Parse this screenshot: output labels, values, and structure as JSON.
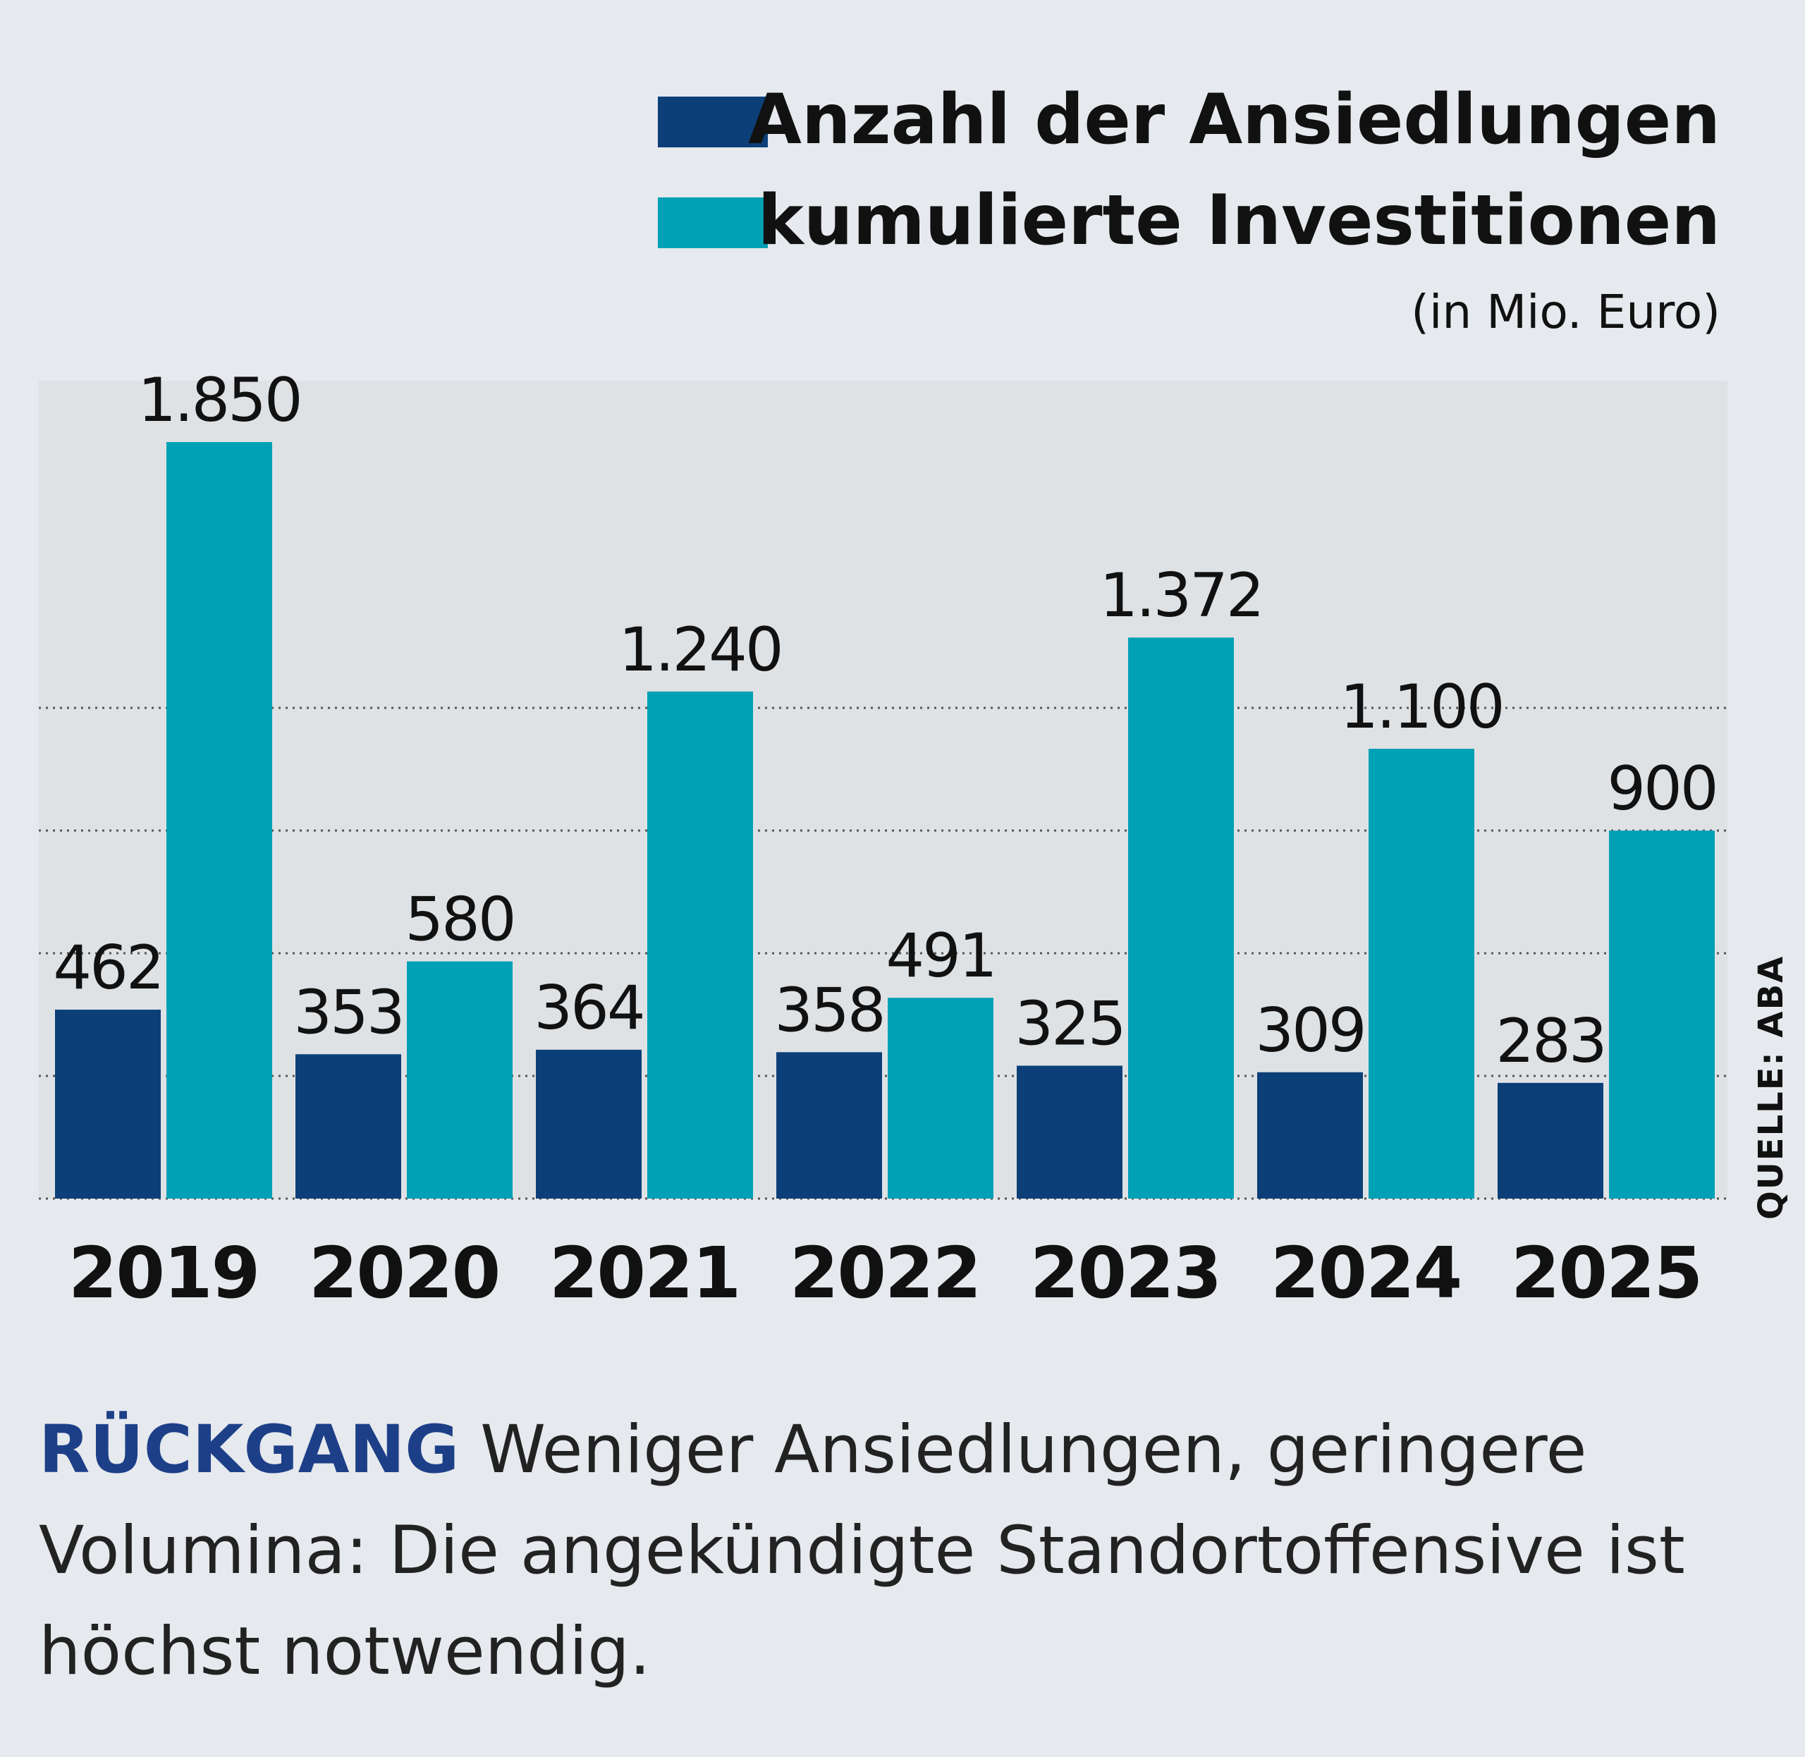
{
  "chart_data": {
    "type": "bar",
    "categories": [
      "2019",
      "2020",
      "2021",
      "2022",
      "2023",
      "2024",
      "2025"
    ],
    "series": [
      {
        "name": "Anzahl der Ansiedlungen",
        "values": [
          462,
          353,
          364,
          358,
          325,
          309,
          283
        ],
        "labels": [
          "462",
          "353",
          "364",
          "358",
          "325",
          "309",
          "283"
        ],
        "color": "#0c3f78"
      },
      {
        "name": "kumulierte Investitionen",
        "values": [
          1850,
          580,
          1240,
          491,
          1372,
          1100,
          900
        ],
        "labels": [
          "1.850",
          "580",
          "1.240",
          "491",
          "1.372",
          "1.100",
          "900"
        ],
        "color": "#00a0b5"
      }
    ],
    "unit_note": "(in Mio. Euro)",
    "legend_position": "top-right",
    "ylim": [
      0,
      2000
    ],
    "grid": true,
    "source": "QUELLE: ABA"
  },
  "caption": {
    "kicker": "RÜCKGANG",
    "text": "Weniger Ansiedlungen, geringere Volumina: Die angekündigte Standortoffensive ist höchst notwendig."
  }
}
